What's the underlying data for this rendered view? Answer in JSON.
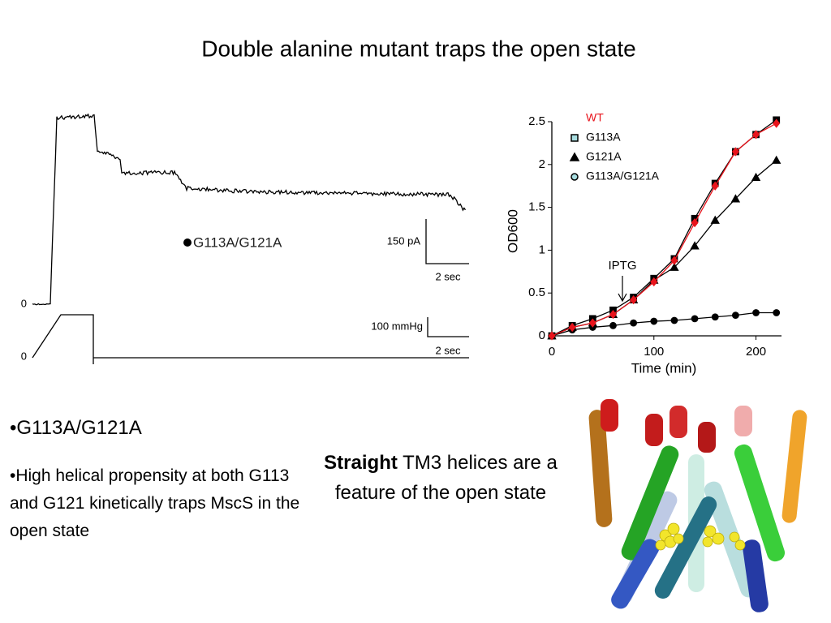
{
  "title": "Double alanine mutant traps the open state",
  "trace": {
    "label": "G113A/G121A",
    "current_zero": "0",
    "pressure_zero": "0",
    "current_scale": "150 pA",
    "current_time": "2 sec",
    "pressure_scale": "100 mmHg",
    "pressure_time": "2 sec"
  },
  "chart_data": {
    "type": "line",
    "x_label": "Time (min)",
    "y_label": "OD600",
    "annotation": "IPTG",
    "x": [
      0,
      20,
      40,
      60,
      80,
      100,
      120,
      140,
      160,
      180,
      200,
      220
    ],
    "series": [
      {
        "name": "G113A/G121A",
        "color": "#000000",
        "marker": "circle",
        "legend_color": "#a8dde0",
        "values": [
          0,
          0.07,
          0.1,
          0.12,
          0.15,
          0.17,
          0.18,
          0.2,
          0.22,
          0.24,
          0.27,
          0.27
        ]
      },
      {
        "name": "G121A",
        "color": "#000000",
        "marker": "triangle",
        "legend_color": "#000000",
        "values": [
          0,
          0.1,
          0.15,
          0.25,
          0.42,
          0.65,
          0.8,
          1.05,
          1.35,
          1.6,
          1.85,
          2.05
        ]
      },
      {
        "name": "G113A",
        "color": "#000000",
        "marker": "square",
        "legend_color": "#a8dde0",
        "values": [
          0,
          0.12,
          0.2,
          0.3,
          0.45,
          0.67,
          0.9,
          1.37,
          1.78,
          2.15,
          2.35,
          2.52
        ]
      },
      {
        "name": "WT",
        "color": "#e8141c",
        "marker": "diamond",
        "values": [
          0,
          0.1,
          0.15,
          0.25,
          0.42,
          0.63,
          0.88,
          1.32,
          1.75,
          2.15,
          2.35,
          2.48
        ]
      }
    ],
    "legend_order": [
      3,
      2,
      1,
      0
    ],
    "xlim": [
      0,
      225
    ],
    "ylim": [
      0,
      2.5
    ],
    "xticks": [
      0,
      100,
      200
    ],
    "yticks": [
      0,
      0.5,
      1,
      1.5,
      2,
      2.5
    ],
    "grid": false
  },
  "bullets": [
    "•G113A/G121A",
    "•High helical propensity at both G113 and G121 kinetically traps MscS in the open state"
  ],
  "caption": {
    "bold": "Straight",
    "rest": " TM3 helices are a feature of the open state"
  }
}
